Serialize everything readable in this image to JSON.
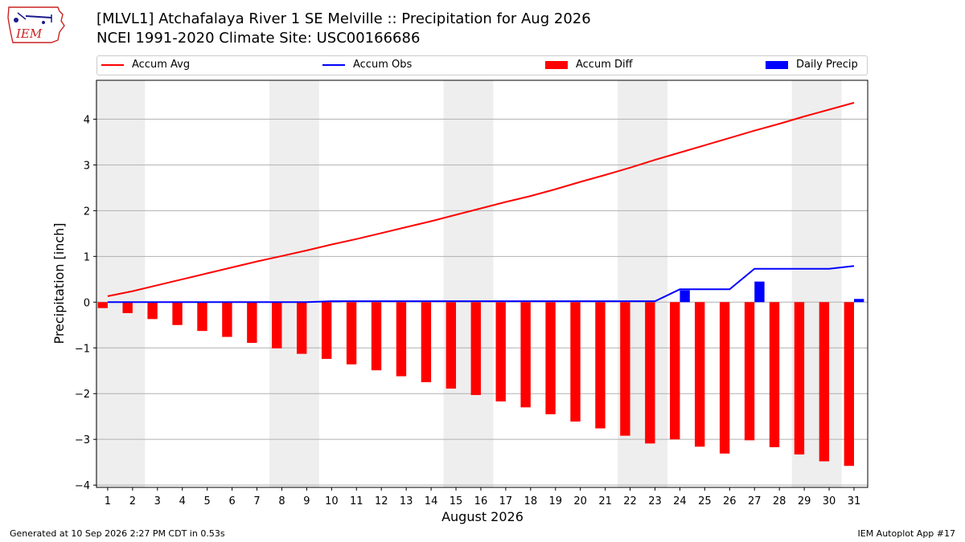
{
  "header": {
    "logo_text": "IEM",
    "title_line1": "[MLVL1] Atchafalaya River 1 SE Melville :: Precipitation for Aug 2026",
    "title_line2": "NCEI 1991-2020 Climate Site: USC00166686"
  },
  "footer": {
    "generated": "Generated at 10 Sep 2026 2:27 PM CDT in 0.53s",
    "app": "IEM Autoplot App #17"
  },
  "colors": {
    "accum_avg": "#ff0000",
    "accum_obs": "#0000ff",
    "accum_diff": "#ff0000",
    "daily_precip": "#0000ff",
    "weekend_band": "#eeeeee",
    "grid": "#b0b0b0"
  },
  "chart_data": {
    "type": "bar",
    "xlabel": "August 2026",
    "ylabel": "Precipitation [inch]",
    "ylim": [
      -4.05,
      4.85
    ],
    "yticks": [
      -4,
      -3,
      -2,
      -1,
      0,
      1,
      2,
      3,
      4
    ],
    "ytick_labels": [
      "−4",
      "−3",
      "−2",
      "−1",
      "0",
      "1",
      "2",
      "3",
      "4"
    ],
    "grid": "horizontal",
    "legend_position": "top",
    "days": [
      1,
      2,
      3,
      4,
      5,
      6,
      7,
      8,
      9,
      10,
      11,
      12,
      13,
      14,
      15,
      16,
      17,
      18,
      19,
      20,
      21,
      22,
      23,
      24,
      25,
      26,
      27,
      28,
      29,
      30,
      31
    ],
    "weekend_bands": [
      [
        1,
        2
      ],
      [
        8,
        9
      ],
      [
        15,
        16
      ],
      [
        22,
        23
      ],
      [
        29,
        30
      ]
    ],
    "series": [
      {
        "name": "Accum Avg",
        "kind": "line",
        "values": [
          0.13,
          0.24,
          0.37,
          0.5,
          0.63,
          0.76,
          0.89,
          1.01,
          1.13,
          1.26,
          1.38,
          1.51,
          1.64,
          1.77,
          1.91,
          2.05,
          2.19,
          2.32,
          2.47,
          2.63,
          2.78,
          2.94,
          3.11,
          3.27,
          3.43,
          3.59,
          3.75,
          3.9,
          4.06,
          4.21,
          4.36
        ]
      },
      {
        "name": "Accum Obs",
        "kind": "line",
        "values": [
          0.0,
          0.0,
          0.0,
          0.0,
          0.0,
          0.0,
          0.0,
          0.0,
          0.0,
          0.02,
          0.02,
          0.02,
          0.02,
          0.02,
          0.02,
          0.02,
          0.02,
          0.02,
          0.02,
          0.02,
          0.02,
          0.02,
          0.02,
          0.28,
          0.28,
          0.28,
          0.73,
          0.73,
          0.73,
          0.73,
          0.79
        ]
      },
      {
        "name": "Accum Diff",
        "kind": "bar",
        "values": [
          -0.13,
          -0.24,
          -0.37,
          -0.5,
          -0.63,
          -0.76,
          -0.89,
          -1.01,
          -1.13,
          -1.24,
          -1.36,
          -1.49,
          -1.62,
          -1.75,
          -1.89,
          -2.03,
          -2.17,
          -2.3,
          -2.45,
          -2.61,
          -2.76,
          -2.92,
          -3.09,
          -3.0,
          -3.16,
          -3.31,
          -3.02,
          -3.17,
          -3.33,
          -3.48,
          -3.58
        ]
      },
      {
        "name": "Daily Precip",
        "kind": "bar",
        "values": [
          0,
          0,
          0,
          0,
          0,
          0,
          0,
          0,
          0,
          0.02,
          0,
          0,
          0,
          0,
          0,
          0,
          0,
          0,
          0,
          0,
          0,
          0,
          0,
          0.26,
          0,
          0,
          0.45,
          0,
          0,
          0,
          0.07
        ]
      }
    ]
  }
}
